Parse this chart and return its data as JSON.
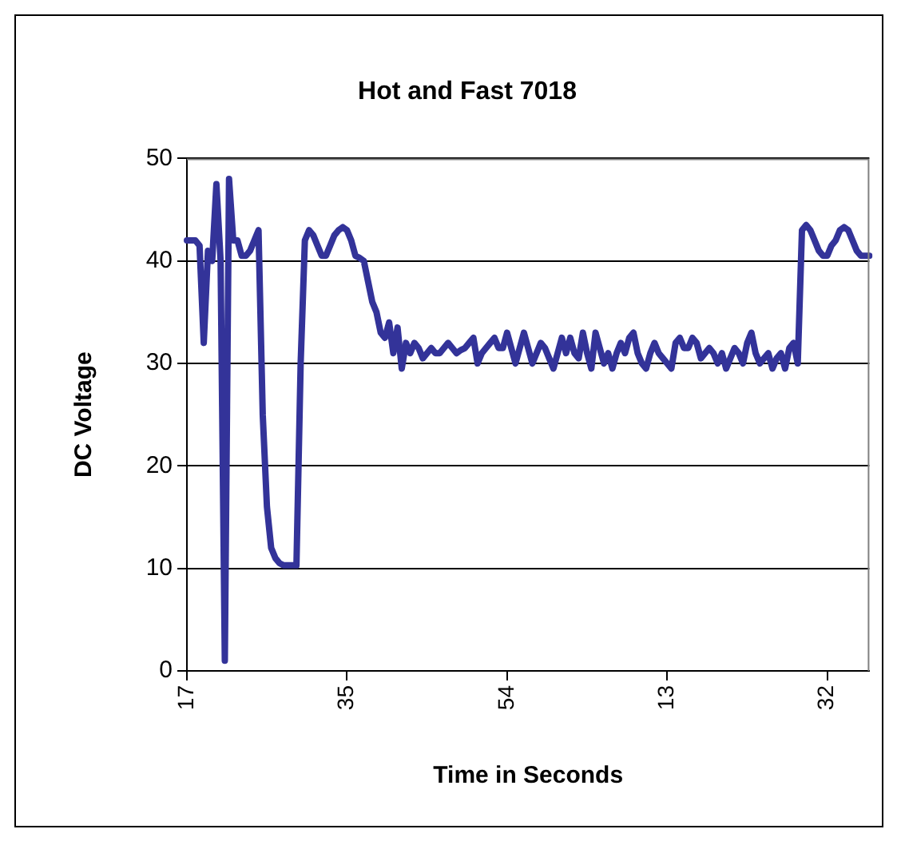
{
  "chart_data": {
    "type": "line",
    "title": "Hot and Fast 7018",
    "xlabel": "Time in Seconds",
    "ylabel": "DC Voltage",
    "categories": [
      "17",
      null,
      null,
      null,
      null,
      null,
      null,
      null,
      null,
      null,
      null,
      null,
      null,
      null,
      null,
      null,
      null,
      null,
      null,
      null,
      null,
      null,
      null,
      null,
      null,
      null,
      null,
      null,
      null,
      null,
      null,
      null,
      null,
      null,
      null,
      null,
      null,
      null,
      "35",
      null,
      null,
      null,
      null,
      null,
      null,
      null,
      null,
      null,
      null,
      null,
      null,
      null,
      null,
      null,
      null,
      null,
      null,
      null,
      null,
      null,
      null,
      null,
      null,
      null,
      null,
      null,
      null,
      null,
      null,
      null,
      null,
      null,
      null,
      null,
      null,
      null,
      "54",
      null,
      null,
      null,
      null,
      null,
      null,
      null,
      null,
      null,
      null,
      null,
      null,
      null,
      null,
      null,
      null,
      null,
      null,
      null,
      null,
      null,
      null,
      null,
      null,
      null,
      null,
      null,
      null,
      null,
      null,
      null,
      null,
      null,
      null,
      null,
      null,
      null,
      "13",
      null,
      null,
      null,
      null,
      null,
      null,
      null,
      null,
      null,
      null,
      null,
      null,
      null,
      null,
      null,
      null,
      null,
      null,
      null,
      null,
      null,
      null,
      null,
      null,
      null,
      null,
      null,
      null,
      null,
      null,
      null,
      null,
      null,
      null,
      null,
      null,
      null,
      "32",
      null,
      null,
      null,
      null,
      null,
      null,
      null,
      null,
      null,
      null
    ],
    "series": [
      {
        "color": "#333399",
        "values": [
          42,
          42,
          42,
          41.5,
          32,
          41,
          40,
          47.5,
          40,
          1,
          48,
          42,
          42,
          40.5,
          40.5,
          41,
          42,
          43,
          25,
          16,
          12,
          11,
          10.5,
          10.3,
          10.3,
          10.3,
          10.3,
          30,
          42,
          43,
          42.5,
          41.5,
          40.5,
          40.5,
          41.5,
          42.5,
          43,
          43.3,
          43,
          42,
          40.5,
          40.3,
          40,
          38,
          36,
          35,
          33,
          32.5,
          34,
          31,
          33.5,
          29.5,
          32,
          31,
          32,
          31.5,
          30.5,
          31,
          31.5,
          31,
          31,
          31.5,
          32,
          31.5,
          31,
          31.3,
          31.5,
          32,
          32.5,
          30,
          31,
          31.5,
          32,
          32.5,
          31.5,
          31.5,
          33,
          31.5,
          30,
          31.5,
          33,
          31.5,
          30,
          31,
          32,
          31.5,
          30.5,
          29.5,
          31,
          32.5,
          31,
          32.5,
          31,
          30.5,
          33,
          31,
          29.5,
          33,
          31.5,
          30,
          31,
          29.5,
          31,
          32,
          31,
          32.5,
          33,
          31,
          30,
          29.5,
          31,
          32,
          31,
          30.5,
          30,
          29.5,
          32,
          32.5,
          31.5,
          31.5,
          32.5,
          32,
          30.5,
          31,
          31.5,
          31,
          30,
          31,
          29.5,
          30.5,
          31.5,
          31,
          30,
          32,
          33,
          31,
          30,
          30.5,
          31,
          29.5,
          30.5,
          31,
          29.5,
          31.5,
          32,
          30,
          43,
          43.5,
          43,
          42,
          41,
          40.5,
          40.5,
          41.5,
          42,
          43,
          43.3,
          43,
          42,
          41,
          40.5,
          40.5,
          40.5
        ]
      }
    ],
    "ylim": [
      0,
      50
    ],
    "yticks": [
      0,
      10,
      20,
      30,
      40,
      50
    ],
    "grid": "y",
    "legend": false,
    "marker": "none",
    "line_style": "solid"
  }
}
